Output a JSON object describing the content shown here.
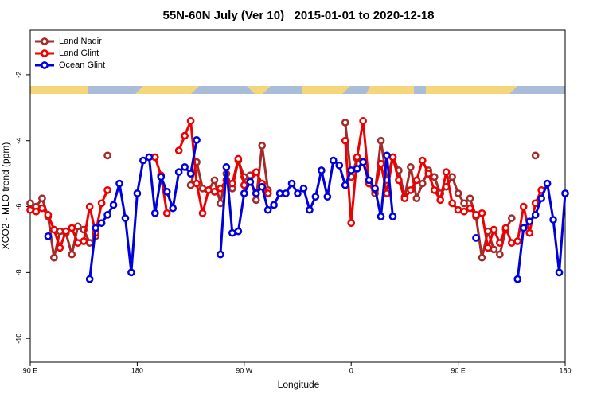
{
  "chart_data": {
    "type": "line",
    "title": "55N-60N July (Ver 10)   2015-01-01 to 2020-12-18",
    "xlabel": "Longitude",
    "ylabel": "XCO2 - MLO trend (ppm)",
    "x": [
      90,
      95,
      100,
      105,
      110,
      115,
      120,
      125,
      130,
      135,
      140,
      145,
      150,
      155,
      160,
      165,
      170,
      175,
      180,
      185,
      190,
      195,
      200,
      205,
      210,
      215,
      220,
      225,
      230,
      235,
      240,
      245,
      250,
      255,
      260,
      265,
      270,
      275,
      280,
      285,
      290,
      295,
      300,
      305,
      310,
      315,
      320,
      325,
      330,
      335,
      340,
      345,
      350,
      355,
      360,
      365,
      370,
      375,
      380,
      385,
      390,
      395,
      400,
      405,
      410,
      415,
      420,
      425,
      430,
      435,
      440,
      445,
      450,
      455,
      460,
      465,
      470,
      475,
      480,
      485,
      490,
      495,
      500,
      505,
      510,
      515,
      520,
      525,
      530,
      535,
      540
    ],
    "xlim": [
      90,
      540
    ],
    "xticks": [
      {
        "value": 90,
        "label": "90 E"
      },
      {
        "value": 180,
        "label": "180"
      },
      {
        "value": 270,
        "label": "90 W"
      },
      {
        "value": 360,
        "label": "0"
      },
      {
        "value": 450,
        "label": "90 E"
      },
      {
        "value": 540,
        "label": "180"
      }
    ],
    "ylim": [
      -10.72,
      -0.65
    ],
    "yticks": [
      -2,
      -4,
      -6,
      -8,
      -10
    ],
    "legend": "top-left",
    "series": [
      {
        "name": "Land Nadir",
        "color": "#a52a2a",
        "values": [
          -5.9,
          -6.0,
          -5.75,
          -6.3,
          -7.55,
          -6.75,
          -6.8,
          -7.45,
          -6.6,
          -6.7,
          -7.1,
          -6.9,
          null,
          -4.45,
          null,
          null,
          null,
          null,
          null,
          null,
          null,
          null,
          null,
          null,
          null,
          null,
          null,
          -5.35,
          -4.65,
          -5.45,
          -5.5,
          -5.2,
          -5.9,
          -5.0,
          -5.45,
          -4.6,
          -5.1,
          -5.05,
          -5.8,
          -4.15,
          -5.5,
          null,
          null,
          null,
          null,
          null,
          null,
          null,
          null,
          null,
          null,
          null,
          null,
          -3.45,
          -5.1,
          -4.55,
          -4.65,
          -5.3,
          -5.6,
          -4.0,
          -5.2,
          -4.5,
          -4.9,
          -5.7,
          -4.8,
          -5.75,
          -5.3,
          -4.9,
          -5.1,
          -5.6,
          -5.4,
          -5.1,
          -5.6,
          -5.9,
          -5.75,
          -6.3,
          -7.55,
          -6.75,
          -7.3,
          -7.45,
          -6.7,
          -6.35,
          null,
          null,
          null,
          -4.45,
          null,
          null,
          null,
          null,
          null
        ]
      },
      {
        "name": "Land Glint",
        "color": "#ee0000",
        "values": [
          -6.1,
          -6.15,
          -6.05,
          -6.25,
          -6.7,
          -7.25,
          -6.75,
          -6.65,
          -7.1,
          -7.05,
          -6.0,
          -6.8,
          -5.9,
          -5.5,
          null,
          null,
          null,
          null,
          null,
          null,
          null,
          -4.5,
          -5.05,
          -6.2,
          null,
          -4.3,
          -3.85,
          -3.4,
          -5.3,
          -6.2,
          -5.5,
          -5.55,
          -5.45,
          -5.2,
          -5.3,
          -4.55,
          -5.35,
          -5.25,
          -4.95,
          -5.3,
          -5.6,
          null,
          null,
          null,
          null,
          null,
          null,
          null,
          null,
          null,
          null,
          null,
          null,
          -4.0,
          -6.5,
          -4.5,
          -3.4,
          -5.3,
          -5.5,
          -4.7,
          -5.6,
          -4.5,
          -5.2,
          -5.75,
          -5.5,
          -5.2,
          -4.6,
          -5.0,
          -5.5,
          -5.8,
          -4.95,
          -5.9,
          -6.1,
          -6.15,
          -6.05,
          -6.25,
          -6.2,
          -7.25,
          -6.7,
          -7.1,
          -6.65,
          -7.1,
          -7.05,
          -6.0,
          -6.8,
          -5.9,
          -5.5,
          null,
          null,
          null,
          null
        ]
      },
      {
        "name": "Ocean Glint",
        "color": "#0000dd",
        "values": [
          null,
          null,
          null,
          -6.9,
          null,
          null,
          null,
          null,
          null,
          null,
          -8.2,
          -6.65,
          -6.5,
          -6.25,
          -5.95,
          -5.3,
          -6.35,
          -8.0,
          -5.6,
          -4.6,
          -4.5,
          -6.2,
          -5.1,
          -5.55,
          -6.05,
          -4.95,
          -4.8,
          -5.0,
          -3.98,
          null,
          null,
          null,
          -7.45,
          -4.8,
          -6.8,
          -6.75,
          -5.6,
          -5.25,
          -5.6,
          -5.4,
          -6.1,
          -5.95,
          -5.6,
          -5.6,
          -5.3,
          -5.6,
          -5.45,
          -6.1,
          -5.7,
          -4.9,
          -5.7,
          -4.6,
          -4.75,
          -5.35,
          -4.9,
          -4.85,
          -4.65,
          -5.2,
          -5.45,
          -6.3,
          -4.45,
          -6.3,
          null,
          null,
          null,
          null,
          null,
          null,
          null,
          null,
          null,
          null,
          null,
          null,
          null,
          -6.95,
          null,
          null,
          null,
          null,
          null,
          null,
          -8.2,
          -6.65,
          -6.45,
          -6.25,
          -5.75,
          -5.3,
          -6.4,
          -8.0,
          -5.6
        ]
      }
    ]
  }
}
